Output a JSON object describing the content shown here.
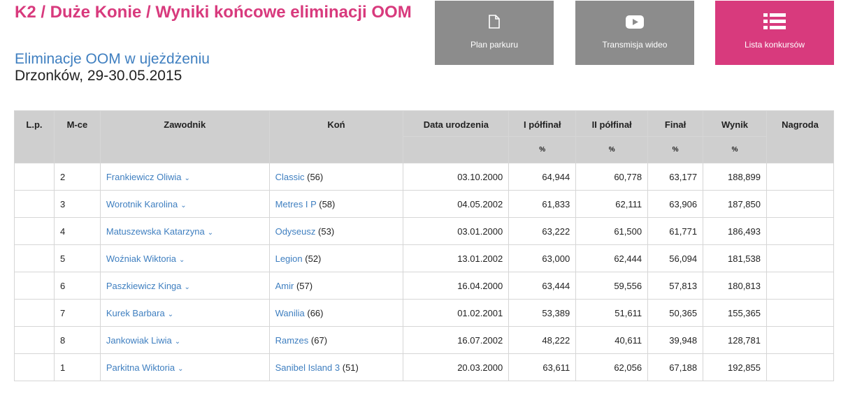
{
  "header": {
    "title": "K2 / Duże Konie / Wyniki końcowe eliminacji OOM",
    "subtitle": "Eliminacje OOM w ujeżdżeniu",
    "date": "Drzonków, 29-30.05.2015"
  },
  "buttons": [
    {
      "label": "Plan parkuru",
      "icon": "document-icon"
    },
    {
      "label": "Transmisja wideo",
      "icon": "video-play-icon"
    },
    {
      "label": "Lista konkursów",
      "icon": "list-icon"
    }
  ],
  "colors": {
    "accent": "#d83a7d",
    "link": "#3f7fc0",
    "button_gray": "#8c8c8c",
    "header_bg": "#cfcfcf"
  },
  "table": {
    "columns": [
      "L.p.",
      "M-ce",
      "Zawodnik",
      "Koń",
      "Data urodzenia",
      "I półfinał",
      "II półfinał",
      "Finał",
      "Wynik",
      "Nagroda"
    ],
    "unit": "%",
    "rows": [
      {
        "lp": "",
        "mce": "2",
        "rider": "Frankiewicz Oliwia",
        "horse": "Classic",
        "age": "(56)",
        "dob": "03.10.2000",
        "s1": "64,944",
        "s2": "60,778",
        "fin": "63,177",
        "res": "188,899",
        "prize": ""
      },
      {
        "lp": "",
        "mce": "3",
        "rider": "Worotnik Karolina",
        "horse": "Metres I P",
        "age": "(58)",
        "dob": "04.05.2002",
        "s1": "61,833",
        "s2": "62,111",
        "fin": "63,906",
        "res": "187,850",
        "prize": ""
      },
      {
        "lp": "",
        "mce": "4",
        "rider": "Matuszewska Katarzyna",
        "horse": "Odyseusz",
        "age": "(53)",
        "dob": "03.01.2000",
        "s1": "63,222",
        "s2": "61,500",
        "fin": "61,771",
        "res": "186,493",
        "prize": ""
      },
      {
        "lp": "",
        "mce": "5",
        "rider": "Woźniak Wiktoria",
        "horse": "Legion",
        "age": "(52)",
        "dob": "13.01.2002",
        "s1": "63,000",
        "s2": "62,444",
        "fin": "56,094",
        "res": "181,538",
        "prize": ""
      },
      {
        "lp": "",
        "mce": "6",
        "rider": "Paszkiewicz Kinga",
        "horse": "Amir",
        "age": "(57)",
        "dob": "16.04.2000",
        "s1": "63,444",
        "s2": "59,556",
        "fin": "57,813",
        "res": "180,813",
        "prize": ""
      },
      {
        "lp": "",
        "mce": "7",
        "rider": "Kurek Barbara",
        "horse": "Wanilia",
        "age": "(66)",
        "dob": "01.02.2001",
        "s1": "53,389",
        "s2": "51,611",
        "fin": "50,365",
        "res": "155,365",
        "prize": ""
      },
      {
        "lp": "",
        "mce": "8",
        "rider": "Jankowiak Liwia",
        "horse": "Ramzes",
        "age": "(67)",
        "dob": "16.07.2002",
        "s1": "48,222",
        "s2": "40,611",
        "fin": "39,948",
        "res": "128,781",
        "prize": ""
      },
      {
        "lp": "",
        "mce": "1",
        "rider": "Parkitna Wiktoria",
        "horse": "Sanibel Island 3",
        "age": "(51)",
        "dob": "20.03.2000",
        "s1": "63,611",
        "s2": "62,056",
        "fin": "67,188",
        "res": "192,855",
        "prize": ""
      }
    ]
  }
}
